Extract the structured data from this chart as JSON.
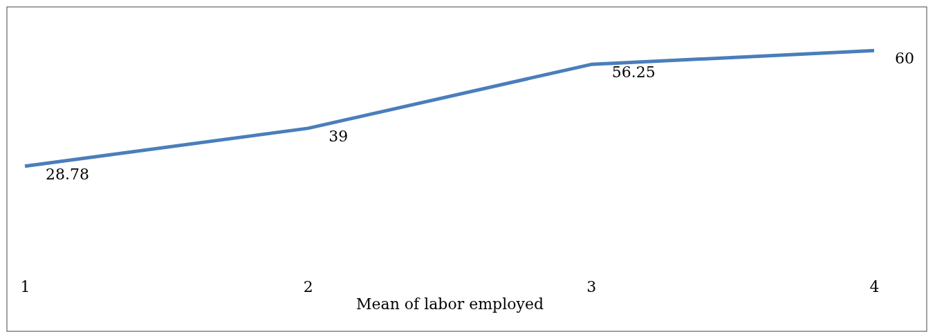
{
  "chart_data": {
    "type": "line",
    "xlabel": "Mean of labor employed",
    "categories": [
      "1",
      "2",
      "3",
      "4"
    ],
    "series": [
      {
        "color": "#4a7ebb",
        "values": [
          28.78,
          39,
          56.25,
          60
        ]
      }
    ],
    "data_labels": true,
    "grid": false,
    "legend": false,
    "marker": "none",
    "line_style": "solid"
  }
}
